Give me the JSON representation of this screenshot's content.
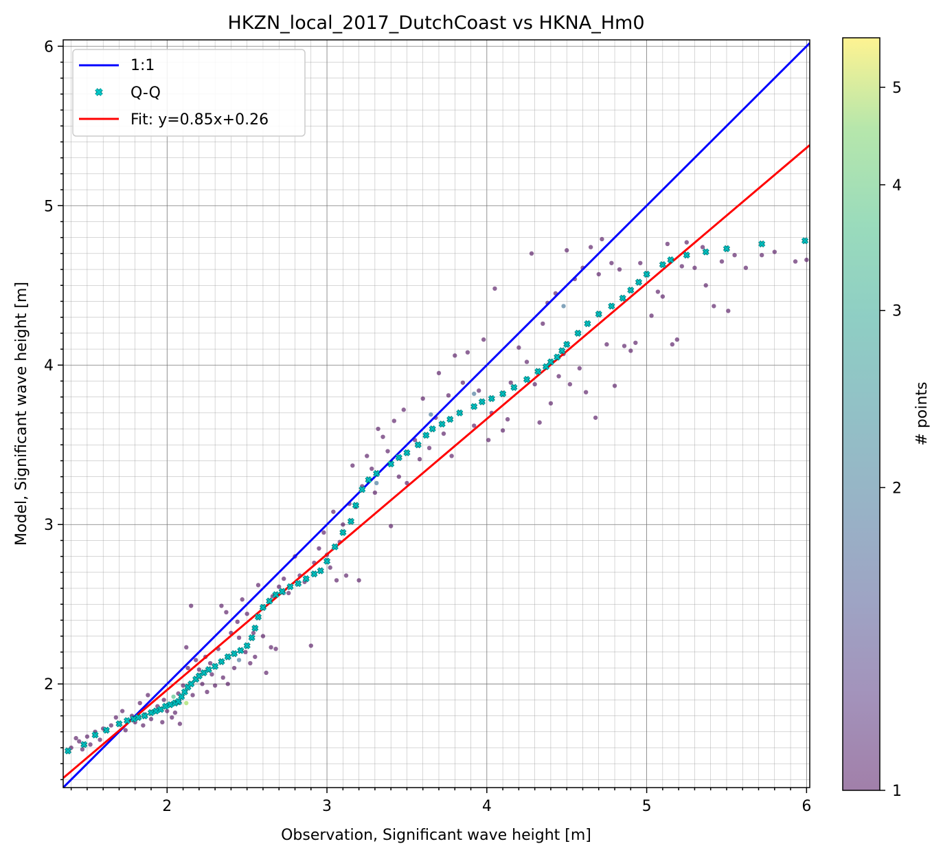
{
  "chart_data": {
    "type": "scatter",
    "title": "HKZN_local_2017_DutchCoast vs HKNA_Hm0",
    "xlabel": "Observation, Significant wave height [m]",
    "ylabel": "Model, Significant wave height [m]",
    "xlim": [
      1.35,
      6.02
    ],
    "ylim": [
      1.35,
      6.04
    ],
    "x_ticks": [
      "2",
      "3",
      "4",
      "5",
      "6"
    ],
    "y_ticks": [
      "2",
      "3",
      "4",
      "5",
      "6"
    ],
    "grid": "major and minor",
    "legend": {
      "position": "top-left",
      "entries": [
        "1:1",
        "Q-Q",
        "Fit: y=0.85x+0.26"
      ]
    },
    "colorbar": {
      "label": "# points",
      "scale": "log",
      "min": 1,
      "max": 5.6,
      "ticks": [
        "1",
        "2",
        "3",
        "4",
        "5"
      ],
      "colormap": "viridis",
      "alpha": 0.5
    },
    "series": [
      {
        "name": "1:1",
        "kind": "line",
        "color": "#0000ff",
        "x": [
          1.35,
          6.02
        ],
        "y": [
          1.35,
          6.02
        ]
      },
      {
        "name": "Fit: y=0.85x+0.26",
        "kind": "line",
        "color": "#ff0000",
        "slope": 0.85,
        "intercept": 0.26,
        "x": [
          1.35,
          6.02
        ],
        "y": [
          1.41,
          5.38
        ]
      },
      {
        "name": "Q-Q",
        "kind": "markers",
        "marker": "x",
        "color": "#00bcbc",
        "points": [
          [
            1.38,
            1.58
          ],
          [
            1.48,
            1.62
          ],
          [
            1.55,
            1.68
          ],
          [
            1.62,
            1.71
          ],
          [
            1.7,
            1.75
          ],
          [
            1.75,
            1.77
          ],
          [
            1.79,
            1.78
          ],
          [
            1.82,
            1.79
          ],
          [
            1.86,
            1.8
          ],
          [
            1.9,
            1.82
          ],
          [
            1.93,
            1.83
          ],
          [
            1.96,
            1.84
          ],
          [
            1.99,
            1.86
          ],
          [
            2.02,
            1.87
          ],
          [
            2.05,
            1.88
          ],
          [
            2.07,
            1.89
          ],
          [
            2.09,
            1.92
          ],
          [
            2.11,
            1.95
          ],
          [
            2.13,
            1.98
          ],
          [
            2.15,
            2.0
          ],
          [
            2.18,
            2.03
          ],
          [
            2.2,
            2.05
          ],
          [
            2.23,
            2.07
          ],
          [
            2.26,
            2.09
          ],
          [
            2.3,
            2.11
          ],
          [
            2.34,
            2.14
          ],
          [
            2.38,
            2.17
          ],
          [
            2.42,
            2.19
          ],
          [
            2.46,
            2.21
          ],
          [
            2.5,
            2.24
          ],
          [
            2.53,
            2.29
          ],
          [
            2.55,
            2.35
          ],
          [
            2.57,
            2.42
          ],
          [
            2.6,
            2.48
          ],
          [
            2.64,
            2.52
          ],
          [
            2.68,
            2.56
          ],
          [
            2.72,
            2.58
          ],
          [
            2.77,
            2.61
          ],
          [
            2.82,
            2.63
          ],
          [
            2.87,
            2.66
          ],
          [
            2.92,
            2.69
          ],
          [
            2.96,
            2.71
          ],
          [
            3.0,
            2.77
          ],
          [
            3.05,
            2.86
          ],
          [
            3.1,
            2.95
          ],
          [
            3.15,
            3.02
          ],
          [
            3.18,
            3.12
          ],
          [
            3.22,
            3.22
          ],
          [
            3.26,
            3.28
          ],
          [
            3.31,
            3.32
          ],
          [
            3.4,
            3.38
          ],
          [
            3.45,
            3.42
          ],
          [
            3.5,
            3.45
          ],
          [
            3.57,
            3.5
          ],
          [
            3.62,
            3.56
          ],
          [
            3.66,
            3.6
          ],
          [
            3.72,
            3.63
          ],
          [
            3.77,
            3.66
          ],
          [
            3.83,
            3.7
          ],
          [
            3.92,
            3.74
          ],
          [
            3.97,
            3.77
          ],
          [
            4.03,
            3.79
          ],
          [
            4.1,
            3.82
          ],
          [
            4.17,
            3.86
          ],
          [
            4.25,
            3.91
          ],
          [
            4.32,
            3.96
          ],
          [
            4.37,
            3.99
          ],
          [
            4.4,
            4.02
          ],
          [
            4.44,
            4.05
          ],
          [
            4.47,
            4.09
          ],
          [
            4.5,
            4.13
          ],
          [
            4.57,
            4.2
          ],
          [
            4.63,
            4.26
          ],
          [
            4.7,
            4.32
          ],
          [
            4.78,
            4.37
          ],
          [
            4.85,
            4.42
          ],
          [
            4.9,
            4.47
          ],
          [
            4.95,
            4.52
          ],
          [
            5.0,
            4.57
          ],
          [
            5.1,
            4.63
          ],
          [
            5.15,
            4.66
          ],
          [
            5.25,
            4.69
          ],
          [
            5.37,
            4.71
          ],
          [
            5.5,
            4.73
          ],
          [
            5.72,
            4.76
          ],
          [
            5.99,
            4.78
          ]
        ]
      },
      {
        "name": "",
        "kind": "scatter",
        "colored_by": "# points",
        "points": [
          [
            1.4,
            1.6,
            1
          ],
          [
            1.43,
            1.66,
            1
          ],
          [
            1.45,
            1.64,
            1
          ],
          [
            1.47,
            1.59,
            1
          ],
          [
            1.5,
            1.67,
            1
          ],
          [
            1.52,
            1.62,
            1
          ],
          [
            1.55,
            1.7,
            1
          ],
          [
            1.58,
            1.65,
            1
          ],
          [
            1.6,
            1.72,
            1
          ],
          [
            1.65,
            1.74,
            1
          ],
          [
            1.68,
            1.79,
            1
          ],
          [
            1.72,
            1.83,
            1
          ],
          [
            1.74,
            1.71,
            1
          ],
          [
            1.78,
            1.8,
            1
          ],
          [
            1.8,
            1.76,
            1
          ],
          [
            1.83,
            1.88,
            1
          ],
          [
            1.85,
            1.74,
            1
          ],
          [
            1.88,
            1.93,
            1
          ],
          [
            1.9,
            1.78,
            1
          ],
          [
            1.94,
            1.86,
            1
          ],
          [
            1.97,
            1.76,
            1
          ],
          [
            1.98,
            1.9,
            1
          ],
          [
            2.0,
            1.83,
            1
          ],
          [
            2.03,
            1.79,
            1
          ],
          [
            2.05,
            1.82,
            1
          ],
          [
            2.07,
            1.94,
            1
          ],
          [
            2.08,
            1.75,
            1
          ],
          [
            2.1,
            1.99,
            1
          ],
          [
            2.12,
            2.23,
            1
          ],
          [
            2.13,
            2.1,
            1
          ],
          [
            2.15,
            2.49,
            1
          ],
          [
            2.16,
            1.93,
            1
          ],
          [
            2.18,
            2.15,
            1
          ],
          [
            2.2,
            2.09,
            1
          ],
          [
            2.22,
            2.0,
            1
          ],
          [
            2.24,
            2.17,
            1
          ],
          [
            2.25,
            1.95,
            1
          ],
          [
            2.27,
            2.13,
            1
          ],
          [
            2.28,
            2.06,
            1
          ],
          [
            2.3,
            1.99,
            1
          ],
          [
            2.32,
            2.22,
            1
          ],
          [
            2.34,
            2.49,
            1
          ],
          [
            2.35,
            2.04,
            1
          ],
          [
            2.37,
            2.45,
            1
          ],
          [
            2.38,
            2.0,
            1
          ],
          [
            2.4,
            2.32,
            1
          ],
          [
            2.42,
            2.1,
            1
          ],
          [
            2.44,
            2.39,
            1
          ],
          [
            2.45,
            2.29,
            1
          ],
          [
            2.47,
            2.53,
            1
          ],
          [
            2.49,
            2.2,
            1
          ],
          [
            2.5,
            2.44,
            1
          ],
          [
            2.52,
            2.13,
            1
          ],
          [
            2.54,
            2.32,
            1
          ],
          [
            2.55,
            2.17,
            1
          ],
          [
            2.57,
            2.62,
            1
          ],
          [
            2.6,
            2.3,
            1
          ],
          [
            2.62,
            2.07,
            1
          ],
          [
            2.65,
            2.23,
            1
          ],
          [
            2.66,
            2.55,
            1
          ],
          [
            2.68,
            2.22,
            1
          ],
          [
            2.7,
            2.61,
            1
          ],
          [
            2.73,
            2.66,
            1
          ],
          [
            2.76,
            2.57,
            1
          ],
          [
            2.8,
            2.8,
            1
          ],
          [
            2.83,
            2.68,
            1
          ],
          [
            2.86,
            2.64,
            1
          ],
          [
            2.9,
            2.24,
            1
          ],
          [
            2.92,
            2.76,
            1
          ],
          [
            2.95,
            2.85,
            1
          ],
          [
            2.98,
            2.95,
            1
          ],
          [
            3.0,
            2.81,
            1
          ],
          [
            3.02,
            2.73,
            1
          ],
          [
            3.04,
            3.08,
            1
          ],
          [
            3.06,
            2.65,
            1
          ],
          [
            3.08,
            2.89,
            1
          ],
          [
            3.1,
            3.0,
            1
          ],
          [
            3.12,
            2.68,
            1
          ],
          [
            3.14,
            3.13,
            1
          ],
          [
            3.16,
            3.37,
            1
          ],
          [
            3.18,
            3.11,
            1
          ],
          [
            3.2,
            2.65,
            1
          ],
          [
            3.22,
            3.24,
            1
          ],
          [
            3.25,
            3.43,
            1
          ],
          [
            3.28,
            3.35,
            1
          ],
          [
            3.3,
            3.2,
            1
          ],
          [
            3.32,
            3.6,
            1
          ],
          [
            3.35,
            3.55,
            1
          ],
          [
            3.38,
            3.46,
            1
          ],
          [
            3.4,
            2.99,
            1
          ],
          [
            3.42,
            3.65,
            1
          ],
          [
            3.45,
            3.3,
            1
          ],
          [
            3.48,
            3.72,
            1
          ],
          [
            3.5,
            3.26,
            1
          ],
          [
            3.55,
            3.53,
            1
          ],
          [
            3.58,
            3.41,
            1
          ],
          [
            3.6,
            3.79,
            1
          ],
          [
            3.64,
            3.48,
            1
          ],
          [
            3.68,
            3.67,
            1
          ],
          [
            3.7,
            3.95,
            1
          ],
          [
            3.73,
            3.57,
            1
          ],
          [
            3.76,
            3.81,
            1
          ],
          [
            3.78,
            3.43,
            1
          ],
          [
            3.8,
            4.06,
            1
          ],
          [
            3.85,
            3.89,
            1
          ],
          [
            3.88,
            4.08,
            1
          ],
          [
            3.92,
            3.62,
            1
          ],
          [
            3.95,
            3.84,
            1
          ],
          [
            3.98,
            4.16,
            1
          ],
          [
            4.01,
            3.53,
            1
          ],
          [
            4.03,
            3.7,
            1
          ],
          [
            4.05,
            4.48,
            1
          ],
          [
            4.1,
            3.59,
            1
          ],
          [
            4.13,
            3.66,
            1
          ],
          [
            4.15,
            3.89,
            1
          ],
          [
            4.2,
            4.11,
            1
          ],
          [
            4.25,
            4.02,
            1
          ],
          [
            4.28,
            4.7,
            1
          ],
          [
            4.3,
            3.88,
            1
          ],
          [
            4.33,
            3.64,
            1
          ],
          [
            4.35,
            4.26,
            1
          ],
          [
            4.38,
            4.39,
            1
          ],
          [
            4.4,
            3.76,
            1
          ],
          [
            4.43,
            4.45,
            1
          ],
          [
            4.45,
            3.93,
            1
          ],
          [
            4.48,
            4.07,
            1
          ],
          [
            4.5,
            4.72,
            1
          ],
          [
            4.52,
            3.88,
            1
          ],
          [
            4.55,
            4.54,
            1
          ],
          [
            4.58,
            3.98,
            1
          ],
          [
            4.6,
            4.61,
            1
          ],
          [
            4.62,
            3.83,
            1
          ],
          [
            4.65,
            4.74,
            1
          ],
          [
            4.68,
            3.67,
            1
          ],
          [
            4.7,
            4.57,
            1
          ],
          [
            4.72,
            4.79,
            1
          ],
          [
            4.75,
            4.13,
            1
          ],
          [
            4.78,
            4.64,
            1
          ],
          [
            4.8,
            3.87,
            1
          ],
          [
            4.83,
            4.6,
            1
          ],
          [
            4.86,
            4.12,
            1
          ],
          [
            4.9,
            4.09,
            1
          ],
          [
            4.93,
            4.14,
            1
          ],
          [
            4.96,
            4.64,
            1
          ],
          [
            5.03,
            4.31,
            1
          ],
          [
            5.07,
            4.46,
            1
          ],
          [
            5.1,
            4.43,
            1
          ],
          [
            5.13,
            4.76,
            1
          ],
          [
            5.16,
            4.13,
            1
          ],
          [
            5.19,
            4.16,
            1
          ],
          [
            5.22,
            4.62,
            1
          ],
          [
            5.25,
            4.77,
            1
          ],
          [
            5.3,
            4.61,
            1
          ],
          [
            5.35,
            4.74,
            1
          ],
          [
            5.37,
            4.5,
            1
          ],
          [
            5.42,
            4.37,
            1
          ],
          [
            5.47,
            4.65,
            1
          ],
          [
            5.51,
            4.34,
            1
          ],
          [
            5.55,
            4.69,
            1
          ],
          [
            5.62,
            4.61,
            1
          ],
          [
            5.72,
            4.69,
            1
          ],
          [
            5.8,
            4.71,
            1
          ],
          [
            5.93,
            4.65,
            1
          ],
          [
            6.0,
            4.66,
            1
          ],
          [
            2.08,
            1.88,
            2
          ],
          [
            2.45,
            2.15,
            2
          ],
          [
            2.73,
            2.57,
            2
          ],
          [
            3.31,
            3.26,
            2
          ],
          [
            3.92,
            3.82,
            2
          ],
          [
            4.48,
            4.37,
            2
          ],
          [
            3.65,
            3.69,
            2
          ],
          [
            2.04,
            1.92,
            3
          ],
          [
            2.12,
            1.88,
            4
          ],
          [
            1.86,
            1.81,
            2
          ]
        ]
      }
    ]
  }
}
